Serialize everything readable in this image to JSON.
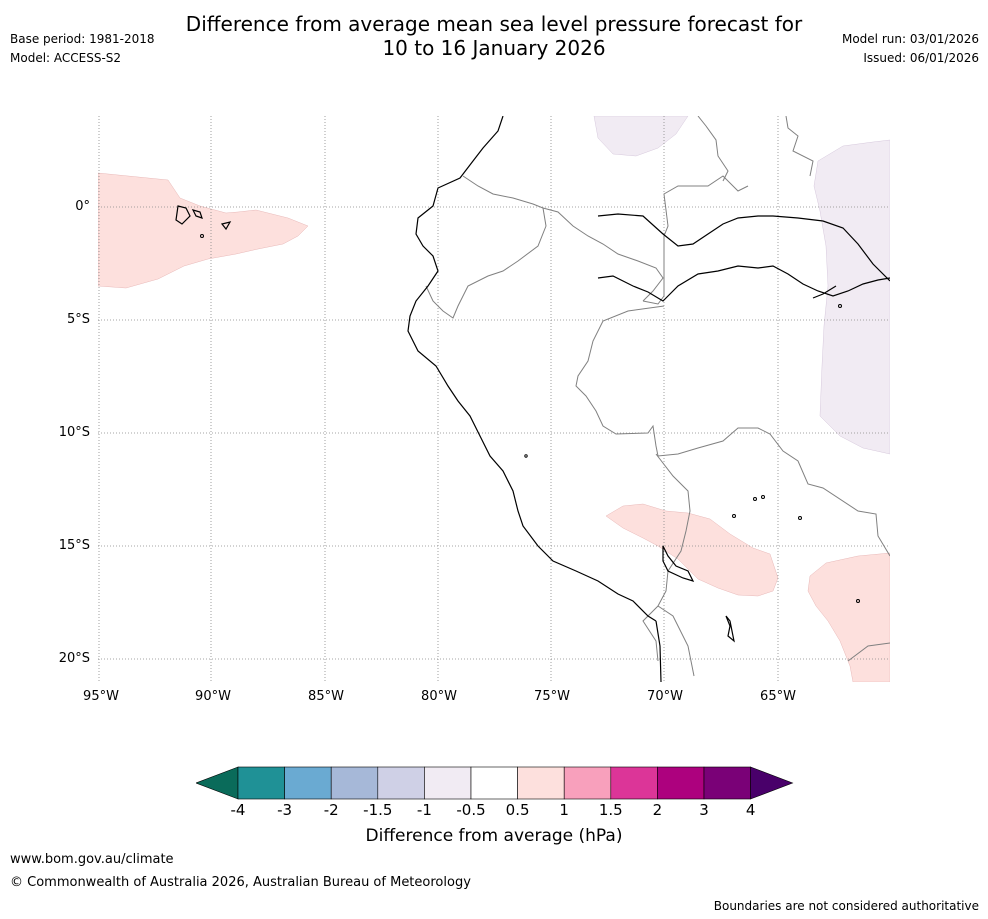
{
  "header": {
    "title_line1": "Difference from average mean sea level pressure forecast for",
    "title_line2": "10 to 16 January 2026",
    "base_period": "Base period: 1981-2018",
    "model": "Model: ACCESS-S2",
    "model_run": "Model run: 03/01/2026",
    "issued": "Issued: 06/01/2026"
  },
  "map": {
    "lat_labels": [
      "0°",
      "5°S",
      "10°S",
      "15°S",
      "20°S"
    ],
    "lon_labels": [
      "95°W",
      "90°W",
      "85°W",
      "80°W",
      "75°W",
      "70°W",
      "65°W"
    ],
    "colors": {
      "anomaly_pos_weak": "#fde0dd",
      "anomaly_neg_weak": "#f1ebf3",
      "coast": "#000000",
      "border": "#808080",
      "grid": "#888888"
    }
  },
  "colorbar": {
    "ticks": [
      "-4",
      "-3",
      "-2",
      "-1.5",
      "-1",
      "-0.5",
      "0.5",
      "1",
      "1.5",
      "2",
      "3",
      "4"
    ],
    "colors": [
      "#0a6b5a",
      "#1f9196",
      "#6aaad2",
      "#a6b8d8",
      "#cfd0e6",
      "#f1ebf3",
      "#ffffff",
      "#fde0dd",
      "#f8a0bc",
      "#dc3598",
      "#ad017e",
      "#7a0177",
      "#49006a"
    ],
    "label": "Difference from average (hPa)"
  },
  "footer": {
    "url": "www.bom.gov.au/climate",
    "copyright": "© Commonwealth of Australia 2026, Australian Bureau of Meteorology",
    "disclaimer": "Boundaries are not considered authoritative"
  }
}
